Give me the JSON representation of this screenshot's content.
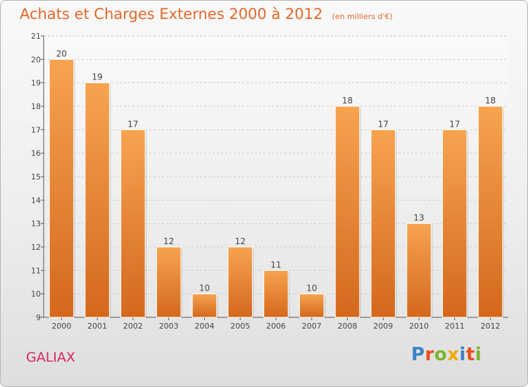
{
  "title": "Achats et Charges Externes 2000 à 2012",
  "unit_note": "(en milliers d'€)",
  "commune": "GALIAX",
  "brand": {
    "name": "Proxiti",
    "letters": [
      {
        "ch": "P",
        "color": "#3b82c4"
      },
      {
        "ch": "r",
        "color": "#e84e1b"
      },
      {
        "ch": "o",
        "color": "#7bb32e"
      },
      {
        "ch": "x",
        "color": "#f2a900"
      },
      {
        "ch": "i",
        "color": "#3b82c4"
      },
      {
        "ch": "t",
        "color": "#e84e1b"
      },
      {
        "ch": "i",
        "color": "#7bb32e"
      }
    ]
  },
  "colors": {
    "bar_light": "#f7a34f",
    "bar_dark": "#d4681c",
    "title": "#e5672a",
    "commune": "#d72660"
  },
  "chart_data": {
    "type": "bar",
    "categories": [
      "2000",
      "2001",
      "2002",
      "2003",
      "2004",
      "2005",
      "2006",
      "2007",
      "2008",
      "2009",
      "2010",
      "2011",
      "2012"
    ],
    "values": [
      20,
      19,
      17,
      12,
      10,
      12,
      11,
      10,
      18,
      17,
      13,
      17,
      18
    ],
    "ylim": [
      9,
      21
    ],
    "yticks": [
      9,
      10,
      11,
      12,
      13,
      14,
      15,
      16,
      17,
      18,
      19,
      20,
      21
    ],
    "grid": "horizontal dashed",
    "data_labels": true
  }
}
